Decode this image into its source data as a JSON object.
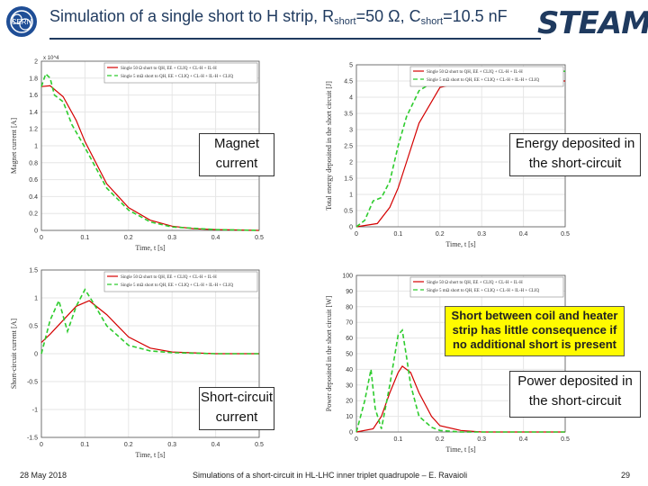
{
  "header": {
    "title_main": "Simulation of a single short to H strip, R",
    "sub1": "short",
    "mid": "=50 Ω, C",
    "sub2": "short",
    "tail": "=10.5 nF",
    "logo_left": "CERN",
    "logo_right": "STEAM"
  },
  "callouts": {
    "magnet": "Magnet current",
    "energy": "Energy deposited in the short-circuit",
    "shortc": "Short-circuit current",
    "power": "Power deposited in the short-circuit",
    "note": "Short between coil and heater strip has little consequence if no additional short is present"
  },
  "footer": {
    "date": "28 May 2018",
    "center": "Simulations of a short-circuit in HL-LHC inner triplet quadrupole – E. Ravaioli",
    "page": "29"
  },
  "chart_data": [
    {
      "type": "line",
      "xlabel": "Time, t [s]",
      "ylabel": "Magnet current [A]",
      "y_exponent": "x 10^4",
      "xlim": [
        0,
        0.5
      ],
      "ylim": [
        0,
        2
      ],
      "x_ticks": [
        "0",
        "0.1",
        "0.2",
        "0.3",
        "0.4",
        "0.5"
      ],
      "y_ticks": [
        "0",
        "0.2",
        "0.4",
        "0.6",
        "0.8",
        "1",
        "1.2",
        "1.4",
        "1.6",
        "1.8",
        "2"
      ],
      "legend": "top-right",
      "series": [
        {
          "name": "Single 50 Ω short to QH, EE + CLIQ + CL-H + IL-H",
          "color": "#d40000",
          "dash": "",
          "x": [
            0,
            0.02,
            0.05,
            0.08,
            0.1,
            0.15,
            0.2,
            0.25,
            0.3,
            0.35,
            0.4,
            0.5
          ],
          "y": [
            1.7,
            1.71,
            1.58,
            1.3,
            1.05,
            0.55,
            0.27,
            0.12,
            0.05,
            0.02,
            0.01,
            0
          ]
        },
        {
          "name": "Single 5 mΩ short to QH, EE + CLIQ + CL-H + IL-H + CLIQ",
          "color": "#2ecc2e",
          "dash": "5,3",
          "x": [
            0,
            0.01,
            0.02,
            0.03,
            0.05,
            0.07,
            0.1,
            0.15,
            0.2,
            0.25,
            0.3,
            0.4,
            0.5
          ],
          "y": [
            1.7,
            1.85,
            1.8,
            1.6,
            1.52,
            1.25,
            0.98,
            0.5,
            0.24,
            0.1,
            0.04,
            0.01,
            0
          ]
        }
      ]
    },
    {
      "type": "line",
      "xlabel": "Time, t [s]",
      "ylabel": "Total energy deposited in the short circuit [J]",
      "xlim": [
        0,
        0.5
      ],
      "ylim": [
        0,
        5
      ],
      "x_ticks": [
        "0",
        "0.1",
        "0.2",
        "0.3",
        "0.4",
        "0.5"
      ],
      "y_ticks": [
        "0",
        "0.5",
        "1",
        "1.5",
        "2",
        "2.5",
        "3",
        "3.5",
        "4",
        "4.5",
        "5"
      ],
      "legend": "top-right",
      "series": [
        {
          "name": "Single 50 Ω short to QH, EE + CLIQ + CL-H + IL-H",
          "color": "#d40000",
          "dash": "",
          "x": [
            0,
            0.05,
            0.08,
            0.1,
            0.12,
            0.15,
            0.2,
            0.25,
            0.3,
            0.5
          ],
          "y": [
            0,
            0.1,
            0.6,
            1.2,
            2.0,
            3.2,
            4.3,
            4.45,
            4.5,
            4.5
          ]
        },
        {
          "name": "Single 5 mΩ short to QH, EE + CLIQ + CL-H + IL-H + CLIQ",
          "color": "#2ecc2e",
          "dash": "5,3",
          "x": [
            0,
            0.02,
            0.04,
            0.06,
            0.08,
            0.1,
            0.12,
            0.15,
            0.2,
            0.25,
            0.3,
            0.5
          ],
          "y": [
            0,
            0.2,
            0.8,
            0.9,
            1.4,
            2.5,
            3.4,
            4.2,
            4.6,
            4.75,
            4.8,
            4.8
          ]
        }
      ]
    },
    {
      "type": "line",
      "xlabel": "Time, t [s]",
      "ylabel": "Short-circuit current [A]",
      "xlim": [
        0,
        0.5
      ],
      "ylim": [
        -1.5,
        1.5
      ],
      "x_ticks": [
        "0",
        "0.1",
        "0.2",
        "0.3",
        "0.4",
        "0.5"
      ],
      "y_ticks": [
        "-1.5",
        "-1",
        "-0.5",
        "0",
        "0.5",
        "1",
        "1.5"
      ],
      "legend": "top-right",
      "series": [
        {
          "name": "Single 50 Ω short to QH, EE + CLIQ + CL-H + IL-H",
          "color": "#d40000",
          "dash": "",
          "x": [
            0,
            0.02,
            0.05,
            0.08,
            0.11,
            0.15,
            0.2,
            0.25,
            0.3,
            0.4,
            0.5
          ],
          "y": [
            0.2,
            0.35,
            0.6,
            0.85,
            0.95,
            0.7,
            0.3,
            0.1,
            0.03,
            0,
            0
          ]
        },
        {
          "name": "Single 5 mΩ short to QH, EE + CLIQ + CL-H + IL-H + CLIQ",
          "color": "#2ecc2e",
          "dash": "5,3",
          "x": [
            0,
            0.02,
            0.04,
            0.06,
            0.08,
            0.1,
            0.12,
            0.15,
            0.2,
            0.25,
            0.3,
            0.4,
            0.5
          ],
          "y": [
            0,
            0.6,
            0.95,
            0.4,
            0.85,
            1.15,
            0.9,
            0.5,
            0.15,
            0.05,
            0.02,
            0,
            0
          ]
        }
      ]
    },
    {
      "type": "line",
      "xlabel": "Time, t [s]",
      "ylabel": "Power deposited in the short circuit [W]",
      "xlim": [
        0,
        0.5
      ],
      "ylim": [
        0,
        100
      ],
      "x_ticks": [
        "0",
        "0.1",
        "0.2",
        "0.3",
        "0.4",
        "0.5"
      ],
      "y_ticks": [
        "0",
        "10",
        "20",
        "30",
        "40",
        "50",
        "60",
        "70",
        "80",
        "90",
        "100"
      ],
      "legend": "top-right",
      "series": [
        {
          "name": "Single 50 Ω short to QH, EE + CLIQ + CL-H + IL-H",
          "color": "#d40000",
          "dash": "",
          "x": [
            0,
            0.04,
            0.06,
            0.08,
            0.1,
            0.11,
            0.13,
            0.15,
            0.18,
            0.2,
            0.25,
            0.3,
            0.5
          ],
          "y": [
            0,
            2,
            10,
            25,
            38,
            42,
            38,
            25,
            10,
            4,
            1,
            0,
            0
          ]
        },
        {
          "name": "Single 5 mΩ short to QH, EE + CLIQ + CL-H + IL-H + CLIQ",
          "color": "#2ecc2e",
          "dash": "5,3",
          "x": [
            0,
            0.02,
            0.035,
            0.045,
            0.06,
            0.08,
            0.1,
            0.11,
            0.12,
            0.13,
            0.15,
            0.18,
            0.2,
            0.25,
            0.3,
            0.5
          ],
          "y": [
            0,
            20,
            40,
            15,
            2,
            30,
            62,
            65,
            48,
            30,
            10,
            3,
            1,
            0,
            0,
            0
          ]
        }
      ]
    }
  ]
}
